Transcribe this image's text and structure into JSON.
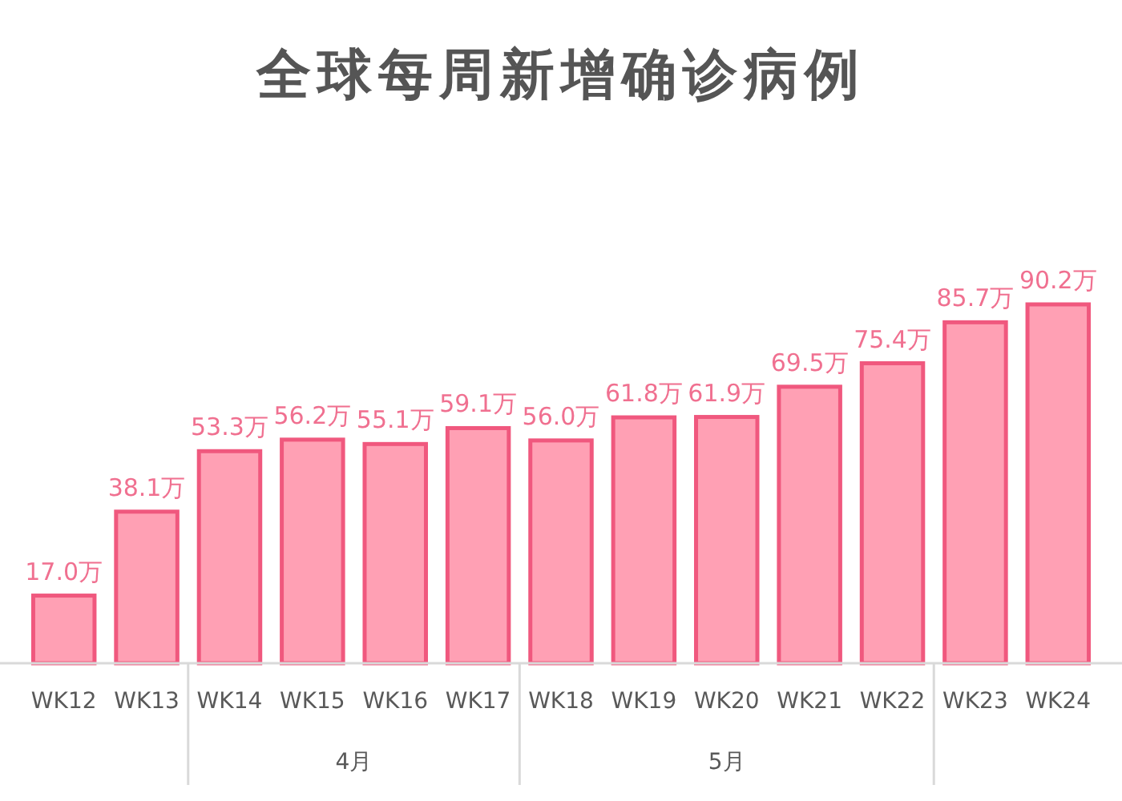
{
  "chart_data": {
    "type": "bar",
    "title": "全球每周新增确诊病例",
    "categories": [
      "WK12",
      "WK13",
      "WK14",
      "WK15",
      "WK16",
      "WK17",
      "WK18",
      "WK19",
      "WK20",
      "WK21",
      "WK22",
      "WK23",
      "WK24"
    ],
    "values": [
      17.0,
      38.1,
      53.3,
      56.2,
      55.1,
      59.1,
      56.0,
      61.8,
      61.9,
      69.5,
      75.4,
      85.7,
      90.2
    ],
    "value_labels": [
      "17.0万",
      "38.1万",
      "53.3万",
      "56.2万",
      "55.1万",
      "59.1万",
      "56.0万",
      "61.8万",
      "61.9万",
      "69.5万",
      "75.4万",
      "85.7万",
      "90.2万"
    ],
    "color": "#ffa0b4",
    "annotations": [
      "4月",
      "5月"
    ]
  }
}
